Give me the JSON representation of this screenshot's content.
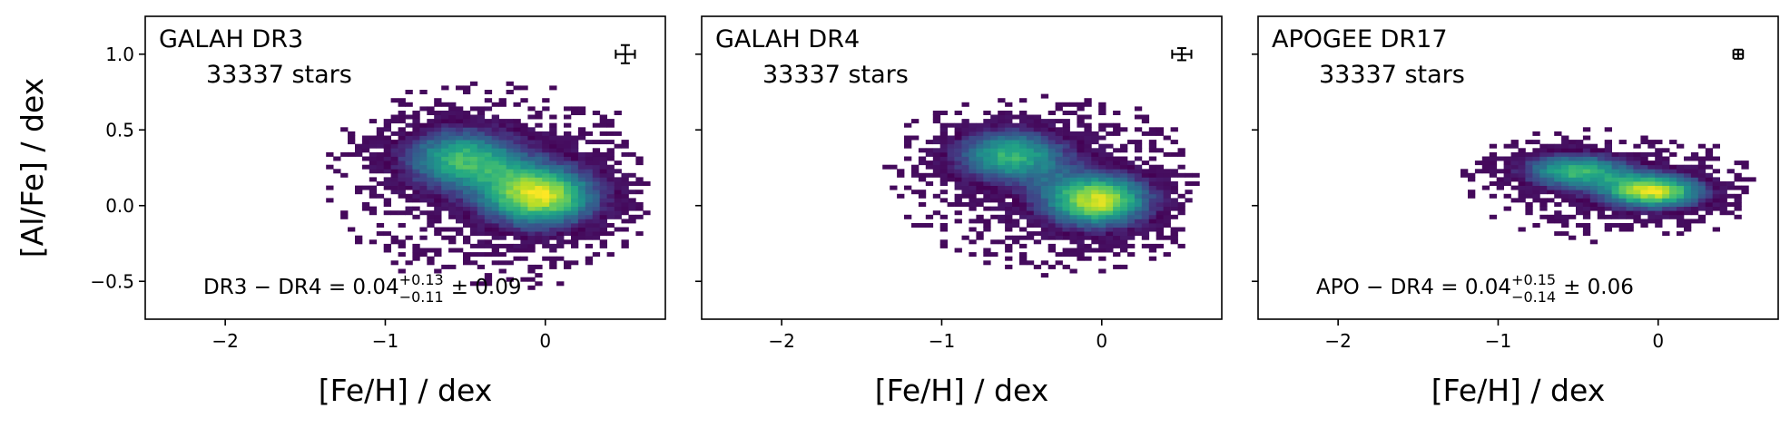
{
  "chart_data": [
    {
      "type": "heatmap",
      "title": "GALAH DR3",
      "subtitle": "33337 stars",
      "xlabel": "[Fe/H] / dex",
      "ylabel": "[Al/Fe] / dex",
      "xlim": [
        -2.5,
        0.75
      ],
      "ylim": [
        -0.75,
        1.25
      ],
      "xticks": [
        -2,
        -1,
        0
      ],
      "xtick_labels": [
        "−2",
        "−1",
        "0"
      ],
      "yticks": [
        -0.5,
        0.0,
        0.5,
        1.0
      ],
      "ytick_labels": [
        "−0.5",
        "0.0",
        "0.5",
        "1.0"
      ],
      "colormap": "viridis",
      "density_peak": {
        "feh": -0.05,
        "alfe": 0.05
      },
      "density_secondary": {
        "feh": -0.55,
        "alfe": 0.3
      },
      "scatter_sigma": {
        "feh": 0.34,
        "alfe": 0.16
      },
      "typical_error": {
        "feh": 0.5,
        "alfe": 1.0,
        "dx": 0.06,
        "dy": 0.06
      },
      "stat": {
        "prefix": "DR3 − DR4 = 0.04",
        "sup": "+0.13",
        "sub": "−0.11",
        "suffix": "± 0.09"
      }
    },
    {
      "type": "heatmap",
      "title": "GALAH DR4",
      "subtitle": "33337 stars",
      "xlabel": "[Fe/H] / dex",
      "ylabel": "",
      "xlim": [
        -2.5,
        0.75
      ],
      "ylim": [
        -0.75,
        1.25
      ],
      "xticks": [
        -2,
        -1,
        0
      ],
      "xtick_labels": [
        "−2",
        "−1",
        "0"
      ],
      "yticks": [
        -0.5,
        0.0,
        0.5,
        1.0
      ],
      "ytick_labels": [],
      "colormap": "viridis",
      "density_peak": {
        "feh": -0.05,
        "alfe": 0.02
      },
      "density_secondary": {
        "feh": -0.6,
        "alfe": 0.32
      },
      "scatter_sigma": {
        "feh": 0.32,
        "alfe": 0.14
      },
      "typical_error": {
        "feh": 0.5,
        "alfe": 1.0,
        "dx": 0.06,
        "dy": 0.04
      },
      "stat": null
    },
    {
      "type": "heatmap",
      "title": "APOGEE DR17",
      "subtitle": "33337 stars",
      "xlabel": "[Fe/H] / dex",
      "ylabel": "",
      "xlim": [
        -2.5,
        0.75
      ],
      "ylim": [
        -0.75,
        1.25
      ],
      "xticks": [
        -2,
        -1,
        0
      ],
      "xtick_labels": [
        "−2",
        "−1",
        "0"
      ],
      "yticks": [
        -0.5,
        0.0,
        0.5,
        1.0
      ],
      "ytick_labels": [],
      "colormap": "viridis",
      "density_peak": {
        "feh": -0.05,
        "alfe": 0.08
      },
      "density_secondary": {
        "feh": -0.55,
        "alfe": 0.22
      },
      "scatter_sigma": {
        "feh": 0.3,
        "alfe": 0.09
      },
      "typical_error": {
        "feh": 0.5,
        "alfe": 1.0,
        "dx": 0.03,
        "dy": 0.03
      },
      "stat": {
        "prefix": "APO − DR4 = 0.04",
        "sup": "+0.15",
        "sub": "−0.14",
        "suffix": "± 0.06"
      }
    }
  ]
}
